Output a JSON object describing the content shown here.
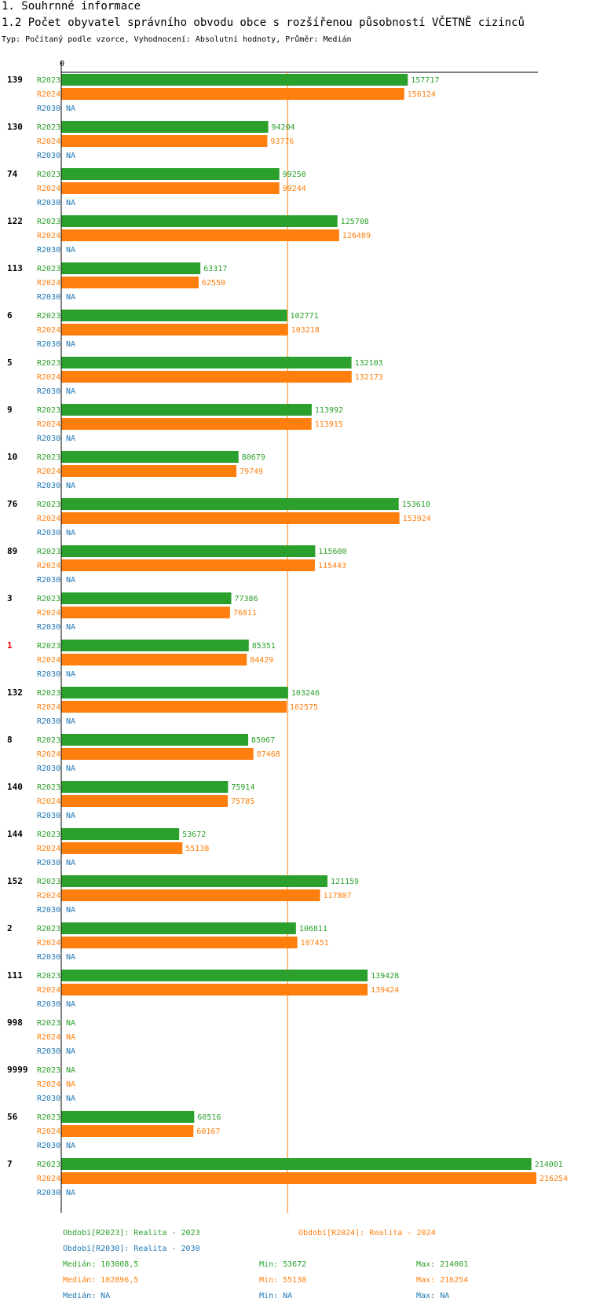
{
  "header": {
    "section_title": "1. Souhrnné informace",
    "chart_title": "1.2 Počet obyvatel správního obvodu obce s rozšířenou působností VČETNĚ cizinců",
    "subtitle": "Typ: Počítaný podle vzorce, Vyhodnocení: Absolutní hodnoty, Průměr: Medián"
  },
  "colors": {
    "R2023": "#2ca02c",
    "R2024": "#ff7f0e",
    "R2030": "#1f77b4",
    "highlight": "#ff0000",
    "axis": "#000000"
  },
  "chart_data": {
    "type": "bar",
    "orientation": "horizontal",
    "axis_zero_label": "0",
    "xlim": [
      0,
      216254
    ],
    "median_line": 103008.5,
    "na_label": "NA",
    "categories": [
      "139",
      "130",
      "74",
      "122",
      "113",
      "6",
      "5",
      "9",
      "10",
      "76",
      "89",
      "3",
      "1",
      "132",
      "8",
      "140",
      "144",
      "152",
      "2",
      "111",
      "998",
      "9999",
      "56",
      "7"
    ],
    "highlighted_category": "1",
    "series": [
      {
        "name": "R2023",
        "values": [
          157717,
          94204,
          99250,
          125708,
          63317,
          102771,
          132103,
          113992,
          80679,
          153610,
          115600,
          77386,
          85351,
          103246,
          85067,
          75914,
          53672,
          121159,
          106811,
          139428,
          null,
          null,
          60516,
          214001
        ]
      },
      {
        "name": "R2024",
        "values": [
          156124,
          93776,
          99244,
          126489,
          62550,
          103218,
          132173,
          113915,
          79749,
          153924,
          115443,
          76811,
          84429,
          102575,
          87468,
          75785,
          55138,
          117807,
          107451,
          139424,
          null,
          null,
          60167,
          216254
        ]
      },
      {
        "name": "R2030",
        "values": [
          null,
          null,
          null,
          null,
          null,
          null,
          null,
          null,
          null,
          null,
          null,
          null,
          null,
          null,
          null,
          null,
          null,
          null,
          null,
          null,
          null,
          null,
          null,
          null
        ]
      }
    ]
  },
  "legend": {
    "items": [
      {
        "key": "R2023",
        "text": "Období[R2023]: Realita - 2023"
      },
      {
        "key": "R2024",
        "text": "Období[R2024]: Realita - 2024"
      },
      {
        "key": "R2030",
        "text": "Období[R2030]: Realita - 2030"
      }
    ],
    "stats": [
      {
        "key": "R2023",
        "median": "Medián: 103008,5",
        "min": "Min: 53672",
        "max": "Max: 214001"
      },
      {
        "key": "R2024",
        "median": "Medián: 102896,5",
        "min": "Min: 55138",
        "max": "Max: 216254"
      },
      {
        "key": "R2030",
        "median": "Medián: NA",
        "min": "Min: NA",
        "max": "Max: NA"
      }
    ]
  }
}
